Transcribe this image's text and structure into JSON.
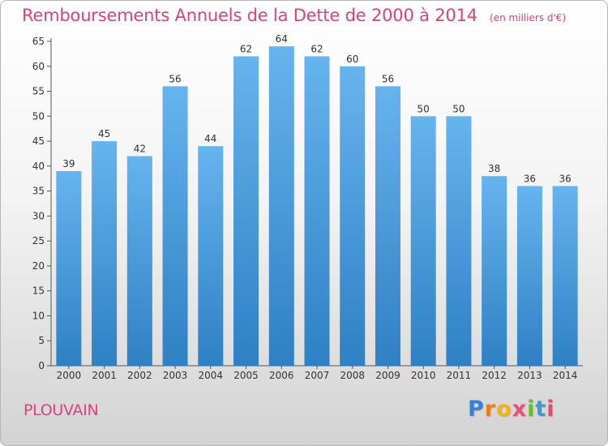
{
  "header": {
    "title": "Remboursements Annuels de la Dette de 2000 à 2014",
    "unit": "(en milliers d'€)"
  },
  "footer": {
    "commune": "PLOUVAIN",
    "logo_text": "Proxiti"
  },
  "colors": {
    "title": "#e0407a",
    "bar_top": "#66b4ee",
    "bar_bottom": "#2f80c4",
    "logo_letters": [
      "#3a7fd6",
      "#e8801a",
      "#f2b21b",
      "#ea4f7a",
      "#6bbb2b",
      "#3a9bd6",
      "#e04f6a"
    ]
  },
  "chart_data": {
    "type": "bar",
    "categories": [
      "2000",
      "2001",
      "2002",
      "2003",
      "2004",
      "2005",
      "2006",
      "2007",
      "2008",
      "2009",
      "2010",
      "2011",
      "2012",
      "2013",
      "2014"
    ],
    "values": [
      39,
      45,
      42,
      56,
      44,
      62,
      64,
      62,
      60,
      56,
      50,
      50,
      38,
      36,
      36
    ],
    "ylim": [
      0,
      65
    ],
    "yticks": [
      0,
      5,
      10,
      15,
      20,
      25,
      30,
      35,
      40,
      45,
      50,
      55,
      60,
      65
    ],
    "grid": false,
    "legend": "none"
  }
}
